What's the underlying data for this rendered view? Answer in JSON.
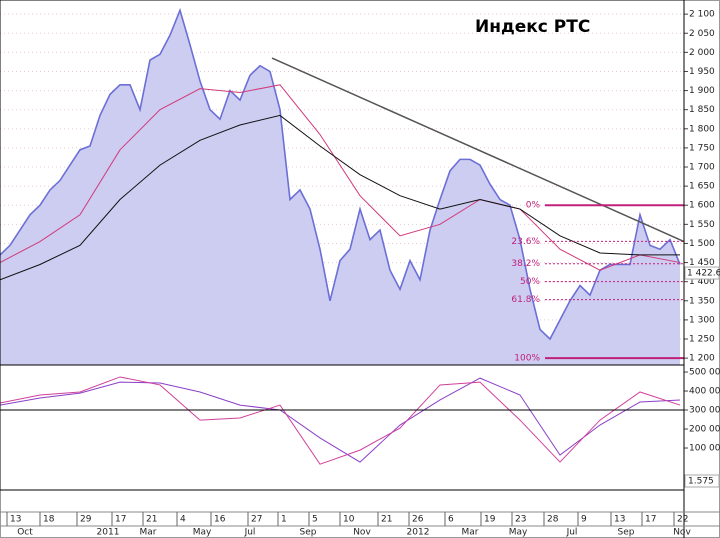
{
  "chart_data": {
    "type": "line",
    "title": "Индекс РТС",
    "xlim": [
      0,
      68.4
    ],
    "ylim": [
      1182,
      2137
    ],
    "yticks": [
      {
        "value": 2100,
        "label": "2 100"
      },
      {
        "value": 2050,
        "label": "2 050"
      },
      {
        "value": 2000,
        "label": "2 000"
      },
      {
        "value": 1950,
        "label": "1 950"
      },
      {
        "value": 1900,
        "label": "1 900"
      },
      {
        "value": 1850,
        "label": "1 850"
      },
      {
        "value": 1800,
        "label": "1 800"
      },
      {
        "value": 1750,
        "label": "1 750"
      },
      {
        "value": 1700,
        "label": "1 700"
      },
      {
        "value": 1650,
        "label": "1 650"
      },
      {
        "value": 1600,
        "label": "1 600"
      },
      {
        "value": 1550,
        "label": "1 550"
      },
      {
        "value": 1500,
        "label": "1 500"
      },
      {
        "value": 1450,
        "label": "1 450"
      },
      {
        "value": 1400,
        "label": "1 400"
      },
      {
        "value": 1350,
        "label": "1 350"
      },
      {
        "value": 1300,
        "label": "1 300"
      },
      {
        "value": 1250,
        "label": "1 250"
      },
      {
        "value": 1200,
        "label": "1 200"
      }
    ],
    "y2lim": [
      -121000,
      537000
    ],
    "y2ticks": [
      {
        "value": 500000,
        "label": "500 000"
      },
      {
        "value": 400000,
        "label": "400 000"
      },
      {
        "value": 300000,
        "label": "300 000"
      },
      {
        "value": 200000,
        "label": "200 000"
      },
      {
        "value": 100000,
        "label": "100 000"
      }
    ],
    "xticks": [
      {
        "value": 0.7,
        "label": "13"
      },
      {
        "value": 4,
        "label": "18"
      },
      {
        "value": 7.7,
        "label": "29"
      },
      {
        "value": 11.2,
        "label": "17"
      },
      {
        "value": 14.3,
        "label": "21"
      },
      {
        "value": 17.7,
        "label": "4"
      },
      {
        "value": 21.1,
        "label": "16"
      },
      {
        "value": 24.8,
        "label": "27"
      },
      {
        "value": 27.8,
        "label": "1"
      },
      {
        "value": 30.9,
        "label": "5"
      },
      {
        "value": 34,
        "label": "10"
      },
      {
        "value": 37.8,
        "label": "21"
      },
      {
        "value": 40.9,
        "label": "26"
      },
      {
        "value": 44.5,
        "label": "6"
      },
      {
        "value": 48.1,
        "label": "19"
      },
      {
        "value": 51.2,
        "label": "23"
      },
      {
        "value": 54.4,
        "label": "28"
      },
      {
        "value": 57.8,
        "label": "9"
      },
      {
        "value": 61.1,
        "label": "13"
      },
      {
        "value": 64.2,
        "label": "17"
      },
      {
        "value": 67.4,
        "label": "22"
      }
    ],
    "months": [
      {
        "value": 2.5,
        "label": "Oct"
      },
      {
        "value": 10.8,
        "label": "2011"
      },
      {
        "value": 14.8,
        "label": "Mar"
      },
      {
        "value": 20.2,
        "label": "May"
      },
      {
        "value": 25,
        "label": "Jul"
      },
      {
        "value": 30.8,
        "label": "Sep"
      },
      {
        "value": 36.2,
        "label": "Nov"
      },
      {
        "value": 41.8,
        "label": "2012"
      },
      {
        "value": 47,
        "label": "Mar"
      },
      {
        "value": 51.8,
        "label": "May"
      },
      {
        "value": 57.2,
        "label": "Jul"
      },
      {
        "value": 62.6,
        "label": "Sep"
      },
      {
        "value": 68.2,
        "label": "Nov"
      }
    ],
    "series": [
      {
        "color": "#6b6fd6",
        "fill": "#cdcdf2",
        "x": [
          0,
          1,
          2,
          3,
          4,
          5,
          6,
          7,
          8,
          9,
          10,
          11,
          12,
          13,
          14,
          15,
          16,
          17,
          18,
          19,
          20,
          21,
          22,
          23,
          24,
          25,
          26,
          27,
          28,
          29,
          30,
          31,
          32,
          33,
          34,
          35,
          36,
          37,
          38,
          39,
          40,
          41,
          42,
          43,
          44,
          45,
          46,
          47,
          48,
          49,
          50,
          51,
          52,
          53,
          54,
          55,
          56,
          57,
          58,
          59,
          60,
          61,
          62,
          63,
          64,
          65,
          66,
          67,
          68
        ],
        "values": [
          1470,
          1495,
          1535,
          1575,
          1600,
          1640,
          1665,
          1705,
          1745,
          1755,
          1835,
          1890,
          1915,
          1915,
          1850,
          1980,
          1995,
          2045,
          2110,
          2020,
          1925,
          1850,
          1825,
          1900,
          1875,
          1940,
          1965,
          1950,
          1850,
          1615,
          1640,
          1590,
          1485,
          1350,
          1455,
          1485,
          1590,
          1510,
          1535,
          1430,
          1380,
          1455,
          1405,
          1535,
          1615,
          1690,
          1720,
          1720,
          1705,
          1655,
          1615,
          1600,
          1510,
          1380,
          1275,
          1250,
          1300,
          1350,
          1390,
          1365,
          1430,
          1445,
          1445,
          1445,
          1575,
          1495,
          1485,
          1510,
          1445
        ]
      },
      {
        "color": "#d03a7a",
        "x": [
          0,
          4,
          8,
          12,
          16,
          20,
          24,
          28,
          32,
          36,
          40,
          44,
          48,
          52,
          56,
          60,
          64,
          68
        ],
        "values": [
          1450,
          1505,
          1575,
          1745,
          1850,
          1905,
          1895,
          1915,
          1785,
          1625,
          1520,
          1550,
          1615,
          1590,
          1485,
          1430,
          1470,
          1450
        ]
      },
      {
        "color": "#111111",
        "x": [
          0,
          4,
          8,
          12,
          16,
          20,
          24,
          28,
          32,
          36,
          40,
          44,
          48,
          52,
          56,
          60,
          64,
          68
        ],
        "values": [
          1405,
          1445,
          1495,
          1615,
          1705,
          1770,
          1810,
          1835,
          1755,
          1680,
          1625,
          1590,
          1615,
          1590,
          1520,
          1475,
          1470,
          1470
        ]
      },
      {
        "color": "#8a3fc8",
        "axis": "y2",
        "x": [
          0,
          4,
          8,
          12,
          16,
          20,
          24,
          28,
          32,
          36,
          40,
          44,
          48,
          52,
          56,
          60,
          64,
          68
        ],
        "values": [
          326000,
          363000,
          389000,
          447000,
          442000,
          395000,
          326000,
          300000,
          153000,
          26000,
          221000,
          353000,
          468000,
          379000,
          63000,
          221000,
          342000,
          353000
        ]
      },
      {
        "color": "#d0409a",
        "axis": "y2",
        "x": [
          0,
          4,
          8,
          12,
          16,
          20,
          24,
          28,
          32,
          36,
          40,
          44,
          48,
          52,
          56,
          60,
          64,
          68
        ],
        "values": [
          337000,
          379000,
          395000,
          474000,
          432000,
          247000,
          258000,
          326000,
          15000,
          89000,
          205000,
          432000,
          447000,
          247000,
          26000,
          247000,
          395000,
          326000
        ]
      }
    ],
    "trendline": {
      "x": [
        27.2,
        68.4
      ],
      "values": [
        1985,
        1505
      ]
    },
    "fib_levels": [
      {
        "label": "0%",
        "value": 1600
      },
      {
        "label": "23.6%",
        "value": 1505.6
      },
      {
        "label": "38.2%",
        "value": 1447
      },
      {
        "label": "50%",
        "value": 1400
      },
      {
        "label": "61.8%",
        "value": 1353
      },
      {
        "label": "100%",
        "value": 1200
      }
    ],
    "last_price": {
      "label": "1 422.6",
      "value": 1422.6
    },
    "osc_label": "1.575"
  }
}
